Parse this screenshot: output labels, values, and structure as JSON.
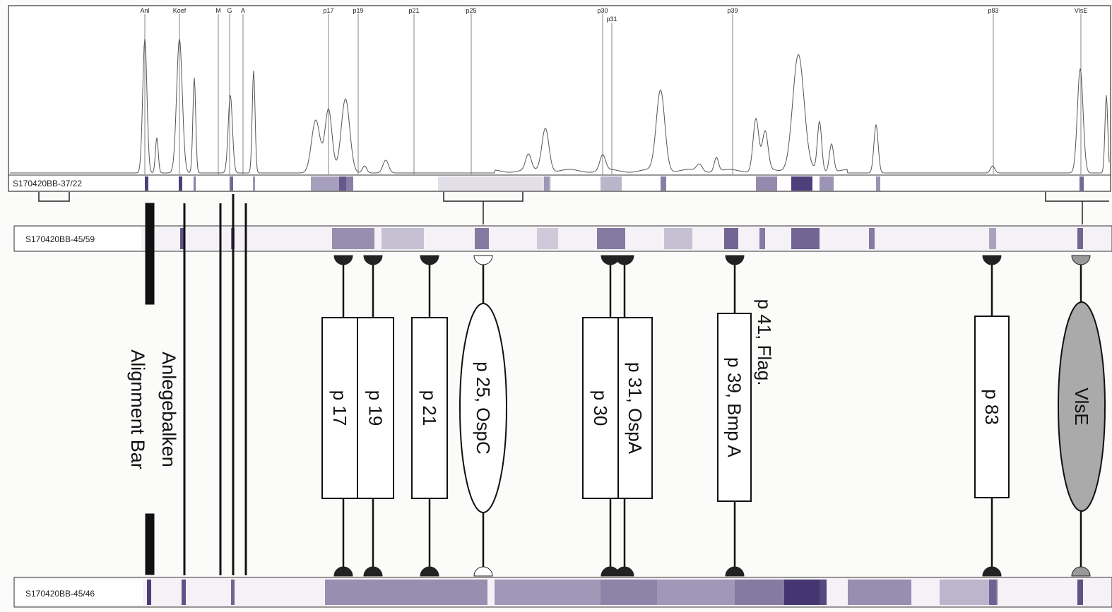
{
  "trace": {
    "sample": "S170420BB-37/22",
    "peaks": [
      "Anl",
      "Koef",
      "M",
      "G",
      "A",
      "p17",
      "p19",
      "p21",
      "p25",
      "p30",
      "p31",
      "p39",
      "p83",
      "VlsE"
    ]
  },
  "strips": [
    "S170420BB-45/59",
    "S170420BB-45/46"
  ],
  "alignment_bar": {
    "line1": "Anlegebalken",
    "line2": "Alignment Bar"
  },
  "bands": [
    "p 17",
    "p 19",
    "p 21",
    "p 25, OspC",
    "p 30",
    "p 31, OspA",
    "p 39, Bmp A",
    "p 41, Flag.",
    "p 83",
    "VlsE"
  ]
}
